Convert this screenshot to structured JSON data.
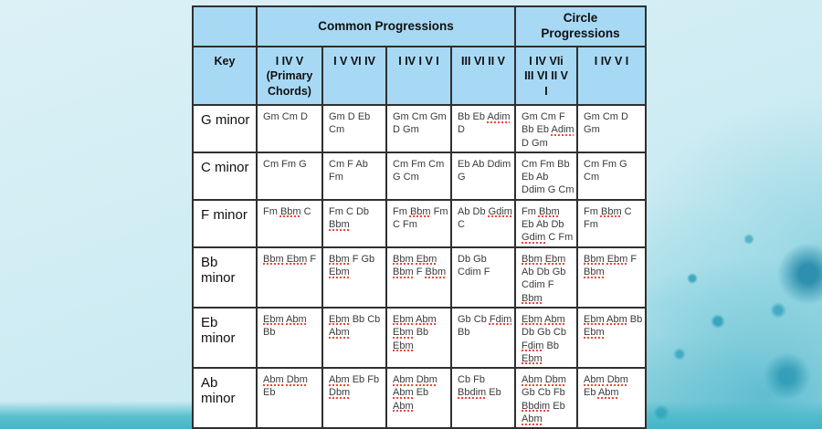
{
  "colors": {
    "header_fill": "#a7d9f5",
    "table_border": "#2f2f2f",
    "cell_fill": "#ffffff",
    "spellcheck_squiggle": "#f54337",
    "background_light_blue": "#cfecf3",
    "background_teal": "#47b5c6"
  },
  "table": {
    "group_headers": [
      {
        "label": "",
        "span": 1
      },
      {
        "label": "Common Progressions",
        "span": 4
      },
      {
        "label": "Circle\nProgressions",
        "span": 2
      }
    ],
    "columns": [
      "Key",
      "I IV V\n(Primary\nChords)",
      "I V VI IV",
      "I IV I V I",
      "III VI II V",
      "I IV VIi\nIII VI II V\nI",
      "I IV V I"
    ],
    "rows": [
      {
        "key": "G minor",
        "cells": [
          {
            "text": "Gm Cm D",
            "misspelled": []
          },
          {
            "text": "Gm D Eb Cm",
            "misspelled": []
          },
          {
            "text": "Gm Cm Gm D Gm",
            "misspelled": []
          },
          {
            "text": "Bb Eb Adim D",
            "misspelled": [
              "Adim"
            ]
          },
          {
            "text": "Gm Cm F Bb Eb Adim D Gm",
            "misspelled": [
              "Adim"
            ]
          },
          {
            "text": "Gm Cm D Gm",
            "misspelled": []
          }
        ]
      },
      {
        "key": "C minor",
        "cells": [
          {
            "text": "Cm Fm G",
            "misspelled": []
          },
          {
            "text": "Cm F Ab Fm",
            "misspelled": []
          },
          {
            "text": "Cm Fm Cm G Cm",
            "misspelled": []
          },
          {
            "text": "Eb Ab Ddim G",
            "misspelled": []
          },
          {
            "text": "Cm Fm Bb Eb Ab Ddim G Cm",
            "misspelled": []
          },
          {
            "text": "Cm Fm G Cm",
            "misspelled": []
          }
        ]
      },
      {
        "key": "F minor",
        "cells": [
          {
            "text": "Fm Bbm C",
            "misspelled": [
              "Bbm"
            ]
          },
          {
            "text": "Fm C Db Bbm",
            "misspelled": [
              "Bbm"
            ]
          },
          {
            "text": "Fm Bbm Fm C Fm",
            "misspelled": [
              "Bbm"
            ]
          },
          {
            "text": "Ab Db Gdim C",
            "misspelled": [
              "Gdim"
            ]
          },
          {
            "text": "Fm Bbm Eb Ab Db Gdim C Fm",
            "misspelled": [
              "Bbm",
              "Gdim"
            ]
          },
          {
            "text": "Fm Bbm C Fm",
            "misspelled": [
              "Bbm"
            ]
          }
        ]
      },
      {
        "key": "Bb minor",
        "cells": [
          {
            "text": "Bbm Ebm F",
            "misspelled": [
              "Bbm",
              "Ebm"
            ]
          },
          {
            "text": "Bbm F Gb Ebm",
            "misspelled": [
              "Bbm",
              "Ebm"
            ]
          },
          {
            "text": "Bbm Ebm Bbm F Bbm",
            "misspelled": [
              "Bbm",
              "Ebm"
            ]
          },
          {
            "text": "Db Gb Cdim F",
            "misspelled": []
          },
          {
            "text": "Bbm Ebm Ab Db Gb Cdim F Bbm",
            "misspelled": [
              "Bbm",
              "Ebm"
            ]
          },
          {
            "text": "Bbm Ebm F Bbm",
            "misspelled": [
              "Bbm",
              "Ebm"
            ]
          }
        ]
      },
      {
        "key": "Eb minor",
        "cells": [
          {
            "text": "Ebm Abm Bb",
            "misspelled": [
              "Ebm",
              "Abm"
            ]
          },
          {
            "text": "Ebm Bb Cb Abm",
            "misspelled": [
              "Ebm",
              "Abm"
            ]
          },
          {
            "text": "Ebm Abm Ebm Bb Ebm",
            "misspelled": [
              "Ebm",
              "Abm"
            ]
          },
          {
            "text": "Gb Cb Fdim Bb",
            "misspelled": [
              "Fdim"
            ]
          },
          {
            "text": "Ebm Abm Db Gb Cb Fdim Bb Ebm",
            "misspelled": [
              "Ebm",
              "Abm",
              "Fdim"
            ]
          },
          {
            "text": "Ebm Abm Bb Ebm",
            "misspelled": [
              "Ebm",
              "Abm"
            ]
          }
        ]
      },
      {
        "key": "Ab minor",
        "cells": [
          {
            "text": "Abm Dbm Eb",
            "misspelled": [
              "Abm",
              "Dbm"
            ]
          },
          {
            "text": "Abm Eb Fb Dbm",
            "misspelled": [
              "Abm",
              "Dbm"
            ]
          },
          {
            "text": "Abm Dbm Abm Eb Abm",
            "misspelled": [
              "Abm",
              "Dbm"
            ]
          },
          {
            "text": "Cb Fb Bbdim Eb",
            "misspelled": [
              "Bbdim"
            ]
          },
          {
            "text": "Abm Dbm Gb Cb Fb Bbdim Eb Abm",
            "misspelled": [
              "Abm",
              "Dbm",
              "Bbdim"
            ]
          },
          {
            "text": "Abm Dbm Eb Abm",
            "misspelled": [
              "Abm",
              "Dbm"
            ]
          }
        ]
      }
    ]
  }
}
